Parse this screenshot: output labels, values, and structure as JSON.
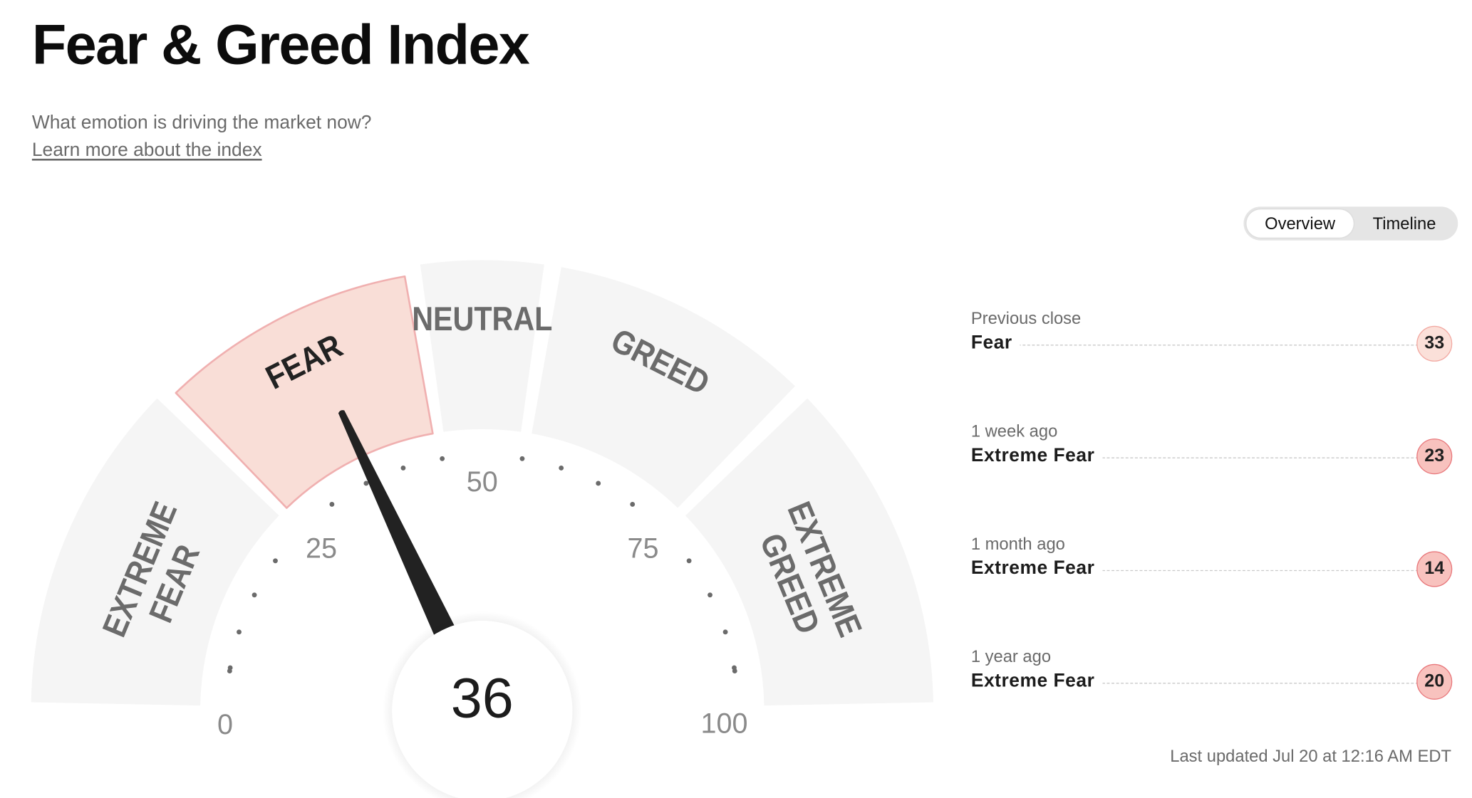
{
  "page": {
    "title": "Fear & Greed Index",
    "subtitle": "What emotion is driving the market now?",
    "learn_more": "Learn more about the index"
  },
  "view_toggle": {
    "options": [
      "Overview",
      "Timeline"
    ],
    "selected": "Overview"
  },
  "gauge": {
    "value": 36,
    "min": 0,
    "max": 100,
    "segments": [
      {
        "id": "extreme-fear",
        "lines": [
          "EXTREME",
          "FEAR"
        ],
        "range": [
          0,
          25
        ],
        "active": false
      },
      {
        "id": "fear",
        "lines": [
          "FEAR"
        ],
        "range": [
          25,
          45
        ],
        "active": true
      },
      {
        "id": "neutral",
        "lines": [
          "NEUTRAL"
        ],
        "range": [
          45,
          55
        ],
        "active": false
      },
      {
        "id": "greed",
        "lines": [
          "GREED"
        ],
        "range": [
          55,
          75
        ],
        "active": false
      },
      {
        "id": "extreme-greed",
        "lines": [
          "EXTREME",
          "GREED"
        ],
        "range": [
          75,
          100
        ],
        "active": false
      }
    ],
    "tick_labels": [
      "0",
      "25",
      "50",
      "75",
      "100"
    ],
    "colors": {
      "segment": "#f5f5f5",
      "active_fill": "#f9ded7",
      "active_stroke": "#f0b0b0",
      "label": "#6b6b6b",
      "active_label": "#222222",
      "needle": "#222222"
    }
  },
  "history": [
    {
      "label": "Previous close",
      "rating": "Fear",
      "value": "33",
      "tone": "fear"
    },
    {
      "label": "1 week ago",
      "rating": "Extreme Fear",
      "value": "23",
      "tone": "extreme-fear"
    },
    {
      "label": "1 month ago",
      "rating": "Extreme Fear",
      "value": "14",
      "tone": "extreme-fear"
    },
    {
      "label": "1 year ago",
      "rating": "Extreme Fear",
      "value": "20",
      "tone": "extreme-fear"
    }
  ],
  "last_updated": "Last updated Jul 20 at 12:16 AM EDT"
}
